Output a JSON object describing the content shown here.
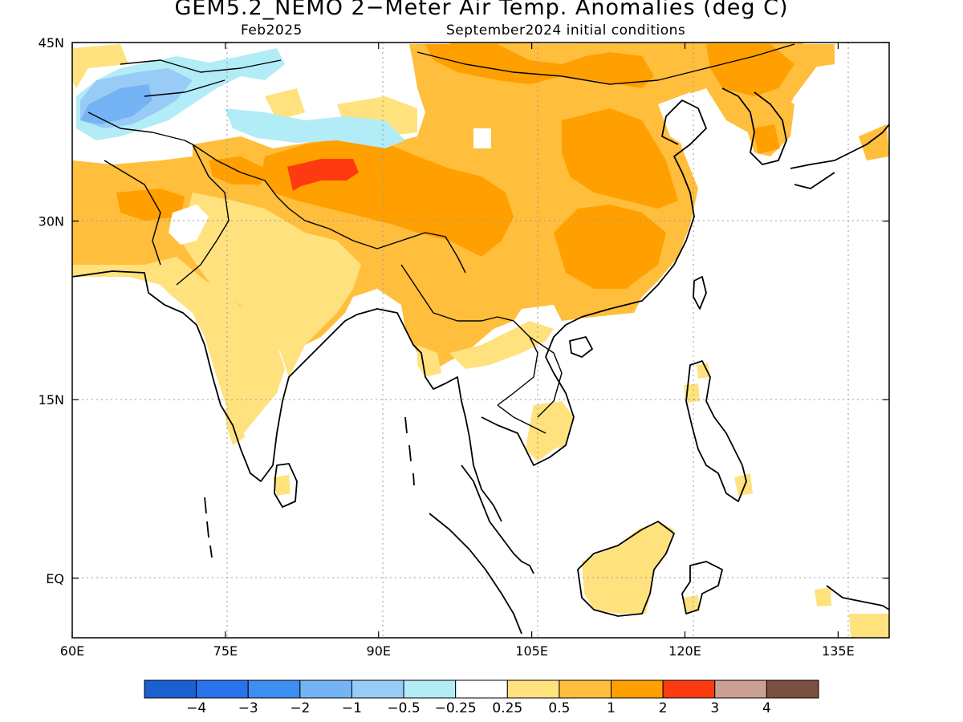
{
  "header": {
    "title": "GEM5.2_NEMO 2−Meter Air Temp. Anomalies (deg C)",
    "valid_month": "Feb2025",
    "initial_conditions": "September2024 initial conditions"
  },
  "map": {
    "lon_range": [
      60,
      140
    ],
    "lat_range": [
      -5,
      45
    ],
    "lon_ticks": [
      {
        "value": 60,
        "label": "60E"
      },
      {
        "value": 75,
        "label": "75E"
      },
      {
        "value": 90,
        "label": "90E"
      },
      {
        "value": 105,
        "label": "105E"
      },
      {
        "value": 120,
        "label": "120E"
      },
      {
        "value": 135,
        "label": "135E"
      }
    ],
    "lat_ticks": [
      {
        "value": 45,
        "label": "45N"
      },
      {
        "value": 30,
        "label": "30N"
      },
      {
        "value": 15,
        "label": "15N"
      },
      {
        "value": 0,
        "label": "EQ"
      }
    ],
    "grid": "dotted"
  },
  "colorbar": {
    "colors": [
      "#1a60d0",
      "#2a72ee",
      "#3c8ef0",
      "#74b4f4",
      "#98ccf6",
      "#b2ecf6",
      "#ffffff",
      "#ffe27e",
      "#ffbe3c",
      "#ff9f00",
      "#fd3a10",
      "#cca090",
      "#7a5040"
    ],
    "labels": [
      "−4",
      "−3",
      "−2",
      "−1",
      "−0.5",
      "−0.25",
      "0.25",
      "0.5",
      "1",
      "2",
      "3",
      "4"
    ]
  },
  "anomaly_regions": [
    {
      "level": "0.5",
      "color": "#ffe27e",
      "description": "India and Pakistan plains"
    },
    {
      "level": "0.5",
      "color": "#ffe27e",
      "description": "Borneo"
    },
    {
      "level": "0.5",
      "color": "#ffe27e",
      "description": "southern Vietnam and Cambodia"
    },
    {
      "level": "1",
      "color": "#ffbe3c",
      "description": "China, Mongolia, Tibet, Iran, Afghanistan"
    },
    {
      "level": "2",
      "color": "#ff9f00",
      "description": "Tibetan Plateau, southern China, Mongolia"
    },
    {
      "level": "3",
      "color": "#fd3a10",
      "description": "western Tibet"
    },
    {
      "level": "-0.5",
      "color": "#98ccf6",
      "description": "Central Asia"
    },
    {
      "level": "-1",
      "color": "#74b4f4",
      "description": "Central Asia core"
    }
  ]
}
